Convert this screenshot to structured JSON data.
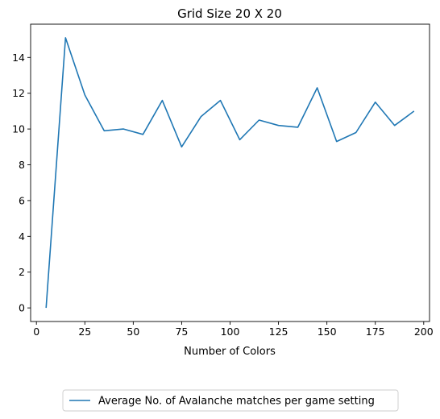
{
  "chart_data": {
    "type": "line",
    "title": "Grid Size 20 X 20",
    "xlabel": "Number of Colors",
    "ylabel": "",
    "xlim": [
      -3,
      203
    ],
    "ylim": [
      -0.76,
      15.86
    ],
    "xticks": [
      0,
      25,
      50,
      75,
      100,
      125,
      150,
      175,
      200
    ],
    "yticks": [
      0,
      2,
      4,
      6,
      8,
      10,
      12,
      14
    ],
    "grid": false,
    "legend_position": "below-center",
    "series": [
      {
        "name": "Average No. of Avalanche matches per game setting",
        "color": "#1f77b4",
        "x": [
          5,
          15,
          25,
          35,
          45,
          55,
          65,
          75,
          85,
          95,
          105,
          115,
          125,
          135,
          145,
          155,
          165,
          175,
          185,
          195
        ],
        "y": [
          0.0,
          15.1,
          11.9,
          9.9,
          10.0,
          9.7,
          11.6,
          9.0,
          10.7,
          11.6,
          9.4,
          10.5,
          10.2,
          10.1,
          12.3,
          9.3,
          9.8,
          11.5,
          10.2,
          11.0
        ]
      }
    ]
  }
}
